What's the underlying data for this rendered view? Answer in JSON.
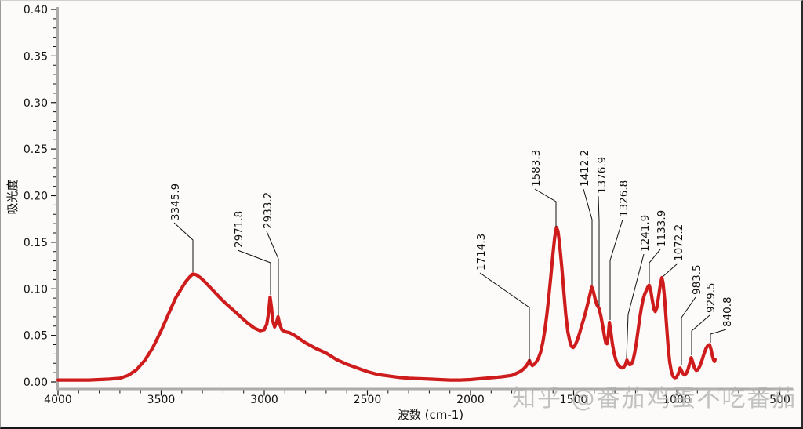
{
  "watermark": {
    "text": "知乎 @番茄鸡蛋不吃番茄"
  },
  "chart_data": {
    "type": "line",
    "title": "",
    "xlabel": "波数 (cm-1)",
    "ylabel": "吸光度",
    "xlim": [
      4000,
      500
    ],
    "ylim": [
      0,
      0.4
    ],
    "x_axis_inverted": true,
    "grid": false,
    "legend": "none",
    "x_ticks": [
      4000,
      3500,
      3000,
      2500,
      2000,
      1500,
      1000,
      500
    ],
    "x_tick_labels": [
      "4000",
      "3500",
      "3000",
      "2500",
      "2000",
      "1500",
      "1000",
      "500"
    ],
    "x_minor_interval": 100,
    "y_ticks": [
      0.0,
      0.05,
      0.1,
      0.15,
      0.2,
      0.25,
      0.3,
      0.35,
      0.4
    ],
    "y_tick_labels": [
      "0.00",
      "0.05",
      "0.10",
      "0.15",
      "0.20",
      "0.25",
      "0.30",
      "0.35",
      "0.40"
    ],
    "y_minor_interval": 0.01,
    "line_color": "#ce1c1c",
    "axis_color": "#ababab",
    "peaks": [
      {
        "label": "3345.9",
        "wavenumber": 3345.9,
        "absorbance": 0.116
      },
      {
        "label": "2971.8",
        "wavenumber": 2971.8,
        "absorbance": 0.091
      },
      {
        "label": "2933.2",
        "wavenumber": 2933.2,
        "absorbance": 0.07
      },
      {
        "label": "1714.3",
        "wavenumber": 1714.3,
        "absorbance": 0.023
      },
      {
        "label": "1583.3",
        "wavenumber": 1583.3,
        "absorbance": 0.166
      },
      {
        "label": "1412.2",
        "wavenumber": 1412.2,
        "absorbance": 0.102
      },
      {
        "label": "1376.9",
        "wavenumber": 1376.9,
        "absorbance": 0.079
      },
      {
        "label": "1326.8",
        "wavenumber": 1326.8,
        "absorbance": 0.064
      },
      {
        "label": "1241.9",
        "wavenumber": 1241.9,
        "absorbance": 0.024
      },
      {
        "label": "1133.9",
        "wavenumber": 1133.9,
        "absorbance": 0.104
      },
      {
        "label": "1072.2",
        "wavenumber": 1072.2,
        "absorbance": 0.112
      },
      {
        "label": "983.5",
        "wavenumber": 983.5,
        "absorbance": 0.015
      },
      {
        "label": "929.5",
        "wavenumber": 929.5,
        "absorbance": 0.026
      },
      {
        "label": "840.8",
        "wavenumber": 840.8,
        "absorbance": 0.04
      }
    ],
    "series": [
      {
        "name": "absorbance",
        "points": [
          [
            4000,
            0.002
          ],
          [
            3950,
            0.002
          ],
          [
            3900,
            0.002
          ],
          [
            3850,
            0.002
          ],
          [
            3800,
            0.0025
          ],
          [
            3750,
            0.003
          ],
          [
            3700,
            0.004
          ],
          [
            3660,
            0.007
          ],
          [
            3620,
            0.013
          ],
          [
            3580,
            0.023
          ],
          [
            3540,
            0.037
          ],
          [
            3500,
            0.055
          ],
          [
            3460,
            0.075
          ],
          [
            3430,
            0.09
          ],
          [
            3400,
            0.101
          ],
          [
            3380,
            0.108
          ],
          [
            3360,
            0.113
          ],
          [
            3345.9,
            0.116
          ],
          [
            3330,
            0.115
          ],
          [
            3310,
            0.112
          ],
          [
            3290,
            0.108
          ],
          [
            3260,
            0.101
          ],
          [
            3230,
            0.094
          ],
          [
            3200,
            0.087
          ],
          [
            3170,
            0.081
          ],
          [
            3140,
            0.075
          ],
          [
            3110,
            0.069
          ],
          [
            3080,
            0.063
          ],
          [
            3050,
            0.058
          ],
          [
            3020,
            0.055
          ],
          [
            3000,
            0.056
          ],
          [
            2988,
            0.062
          ],
          [
            2980,
            0.073
          ],
          [
            2971.8,
            0.091
          ],
          [
            2965,
            0.08
          ],
          [
            2958,
            0.065
          ],
          [
            2950,
            0.059
          ],
          [
            2942,
            0.063
          ],
          [
            2933.2,
            0.07
          ],
          [
            2925,
            0.062
          ],
          [
            2915,
            0.056
          ],
          [
            2900,
            0.054
          ],
          [
            2880,
            0.053
          ],
          [
            2860,
            0.051
          ],
          [
            2840,
            0.048
          ],
          [
            2820,
            0.045
          ],
          [
            2800,
            0.042
          ],
          [
            2750,
            0.036
          ],
          [
            2700,
            0.031
          ],
          [
            2650,
            0.024
          ],
          [
            2600,
            0.019
          ],
          [
            2550,
            0.015
          ],
          [
            2500,
            0.011
          ],
          [
            2450,
            0.008
          ],
          [
            2400,
            0.0065
          ],
          [
            2350,
            0.005
          ],
          [
            2300,
            0.004
          ],
          [
            2250,
            0.0035
          ],
          [
            2200,
            0.003
          ],
          [
            2150,
            0.0025
          ],
          [
            2100,
            0.002
          ],
          [
            2050,
            0.002
          ],
          [
            2000,
            0.0025
          ],
          [
            1950,
            0.0035
          ],
          [
            1900,
            0.0045
          ],
          [
            1850,
            0.0055
          ],
          [
            1800,
            0.007
          ],
          [
            1780,
            0.009
          ],
          [
            1760,
            0.011
          ],
          [
            1745,
            0.0135
          ],
          [
            1730,
            0.017
          ],
          [
            1722,
            0.02
          ],
          [
            1714.3,
            0.023
          ],
          [
            1707,
            0.019
          ],
          [
            1700,
            0.0175
          ],
          [
            1690,
            0.019
          ],
          [
            1680,
            0.022
          ],
          [
            1670,
            0.026
          ],
          [
            1660,
            0.032
          ],
          [
            1650,
            0.042
          ],
          [
            1640,
            0.055
          ],
          [
            1630,
            0.072
          ],
          [
            1620,
            0.092
          ],
          [
            1610,
            0.115
          ],
          [
            1600,
            0.138
          ],
          [
            1592,
            0.155
          ],
          [
            1583.3,
            0.166
          ],
          [
            1576,
            0.162
          ],
          [
            1568,
            0.148
          ],
          [
            1558,
            0.125
          ],
          [
            1548,
            0.098
          ],
          [
            1538,
            0.072
          ],
          [
            1528,
            0.054
          ],
          [
            1518,
            0.043
          ],
          [
            1510,
            0.038
          ],
          [
            1502,
            0.037
          ],
          [
            1494,
            0.039
          ],
          [
            1484,
            0.044
          ],
          [
            1472,
            0.052
          ],
          [
            1460,
            0.061
          ],
          [
            1448,
            0.07
          ],
          [
            1436,
            0.08
          ],
          [
            1424,
            0.091
          ],
          [
            1412.2,
            0.102
          ],
          [
            1404,
            0.097
          ],
          [
            1396,
            0.089
          ],
          [
            1388,
            0.083
          ],
          [
            1376.9,
            0.079
          ],
          [
            1368,
            0.071
          ],
          [
            1358,
            0.059
          ],
          [
            1350,
            0.048
          ],
          [
            1344,
            0.042
          ],
          [
            1338,
            0.041
          ],
          [
            1332,
            0.05
          ],
          [
            1326.8,
            0.064
          ],
          [
            1320,
            0.055
          ],
          [
            1312,
            0.041
          ],
          [
            1304,
            0.031
          ],
          [
            1296,
            0.024
          ],
          [
            1288,
            0.019
          ],
          [
            1280,
            0.017
          ],
          [
            1272,
            0.0155
          ],
          [
            1264,
            0.015
          ],
          [
            1256,
            0.016
          ],
          [
            1248,
            0.019
          ],
          [
            1241.9,
            0.0235
          ],
          [
            1236,
            0.021
          ],
          [
            1228,
            0.0185
          ],
          [
            1220,
            0.019
          ],
          [
            1212,
            0.023
          ],
          [
            1204,
            0.031
          ],
          [
            1196,
            0.042
          ],
          [
            1188,
            0.055
          ],
          [
            1180,
            0.068
          ],
          [
            1172,
            0.079
          ],
          [
            1164,
            0.088
          ],
          [
            1156,
            0.094
          ],
          [
            1148,
            0.098
          ],
          [
            1140,
            0.102
          ],
          [
            1133.9,
            0.104
          ],
          [
            1126,
            0.098
          ],
          [
            1118,
            0.087
          ],
          [
            1110,
            0.078
          ],
          [
            1104,
            0.0755
          ],
          [
            1096,
            0.08
          ],
          [
            1088,
            0.092
          ],
          [
            1080,
            0.104
          ],
          [
            1072.2,
            0.112
          ],
          [
            1066,
            0.106
          ],
          [
            1058,
            0.088
          ],
          [
            1050,
            0.062
          ],
          [
            1042,
            0.038
          ],
          [
            1034,
            0.021
          ],
          [
            1026,
            0.011
          ],
          [
            1018,
            0.006
          ],
          [
            1010,
            0.0045
          ],
          [
            1002,
            0.005
          ],
          [
            994,
            0.008
          ],
          [
            988,
            0.012
          ],
          [
            983.5,
            0.015
          ],
          [
            978,
            0.0125
          ],
          [
            970,
            0.009
          ],
          [
            962,
            0.0075
          ],
          [
            954,
            0.009
          ],
          [
            946,
            0.013
          ],
          [
            938,
            0.019
          ],
          [
            929.5,
            0.026
          ],
          [
            922,
            0.021
          ],
          [
            914,
            0.015
          ],
          [
            906,
            0.0125
          ],
          [
            898,
            0.013
          ],
          [
            888,
            0.017
          ],
          [
            878,
            0.023
          ],
          [
            868,
            0.03
          ],
          [
            858,
            0.036
          ],
          [
            848,
            0.0395
          ],
          [
            840.8,
            0.04
          ],
          [
            834,
            0.035
          ],
          [
            828,
            0.029
          ],
          [
            822,
            0.024
          ],
          [
            817,
            0.022
          ],
          [
            814,
            0.024
          ]
        ]
      }
    ]
  }
}
